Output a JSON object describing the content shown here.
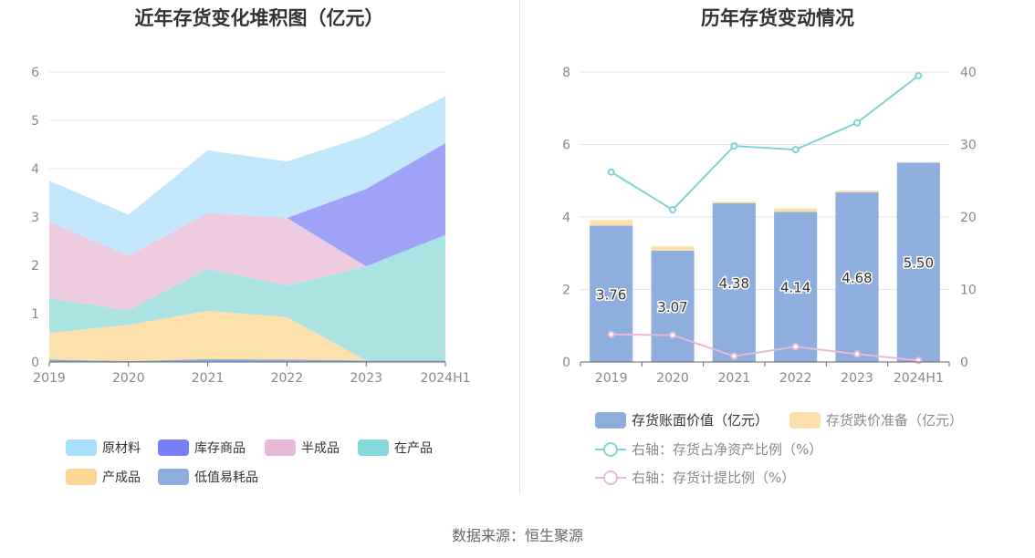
{
  "source": "数据来源：恒生聚源",
  "chart_data": [
    {
      "type": "area",
      "stacked": true,
      "title": "近年存货变化堆积图（亿元）",
      "categories": [
        "2019",
        "2020",
        "2021",
        "2022",
        "2023",
        "2024H1"
      ],
      "y_ticks": [
        "0",
        "1",
        "2",
        "3",
        "4",
        "5",
        "6"
      ],
      "ylim": [
        0,
        6
      ],
      "grid": true,
      "legend_position": "bottom",
      "series": [
        {
          "name": "低值易耗品",
          "color": "#8eaedd",
          "values": [
            0.05,
            0.02,
            0.06,
            0.05,
            0.03,
            0.03
          ]
        },
        {
          "name": "产成品",
          "color": "#fde1ac",
          "values": [
            0.55,
            0.75,
            1.0,
            0.88,
            0.0,
            0.0
          ]
        },
        {
          "name": "在产品",
          "color": "#abe3e3",
          "values": [
            0.72,
            0.3,
            0.87,
            0.65,
            1.95,
            2.6
          ]
        },
        {
          "name": "半成品",
          "color": "#edcce2",
          "values": [
            1.58,
            1.13,
            1.15,
            1.4,
            0.0,
            0.0
          ]
        },
        {
          "name": "库存商品",
          "color": "#9ea3f8",
          "values": [
            0.0,
            0.0,
            0.0,
            0.0,
            1.6,
            1.9
          ]
        },
        {
          "name": "原材料",
          "color": "#c3e8fb",
          "values": [
            0.85,
            0.85,
            1.3,
            1.17,
            1.1,
            0.97
          ]
        }
      ],
      "legend": [
        {
          "name": "原材料",
          "color": "#a8e0fb"
        },
        {
          "name": "库存商品",
          "color": "#7b7ff5"
        },
        {
          "name": "半成品",
          "color": "#e8b9d9"
        },
        {
          "name": "在产品",
          "color": "#87d8d8"
        },
        {
          "name": "产成品",
          "color": "#fdd796"
        },
        {
          "name": "低值易耗品",
          "color": "#8eaedd"
        }
      ]
    },
    {
      "type": "bar",
      "stacked": true,
      "title": "历年存货变动情况",
      "categories": [
        "2019",
        "2020",
        "2021",
        "2022",
        "2023",
        "2024H1"
      ],
      "y_left_ticks": [
        "0",
        "2",
        "4",
        "6",
        "8"
      ],
      "ylim_left": [
        0,
        8
      ],
      "y_right_ticks": [
        "0",
        "10",
        "20",
        "30",
        "40"
      ],
      "ylim_right": [
        0,
        40
      ],
      "grid": true,
      "legend_position": "bottom",
      "series": [
        {
          "name": "存货账面价值（亿元）",
          "kind": "bar",
          "axis": "left",
          "color": "#8eaedd",
          "values": [
            3.76,
            3.07,
            4.38,
            4.14,
            4.68,
            5.5
          ],
          "labels": [
            "3.76",
            "3.07",
            "4.38",
            "4.14",
            "4.68",
            "5.50"
          ]
        },
        {
          "name": "存货跌价准备（亿元）",
          "kind": "bar",
          "axis": "left",
          "color": "#fde1ac",
          "values": [
            0.15,
            0.12,
            0.05,
            0.1,
            0.05,
            0.0
          ]
        },
        {
          "name": "右轴：存货占净资产比例（%）",
          "kind": "line",
          "axis": "right",
          "color": "#7fd3d3",
          "values": [
            26.2,
            21.0,
            29.8,
            29.3,
            33.0,
            39.5
          ]
        },
        {
          "name": "右轴：存货计提比例（%）",
          "kind": "line",
          "axis": "right",
          "color": "#e8b9d9",
          "values": [
            3.8,
            3.7,
            0.8,
            2.1,
            1.1,
            0.2
          ]
        }
      ]
    }
  ]
}
